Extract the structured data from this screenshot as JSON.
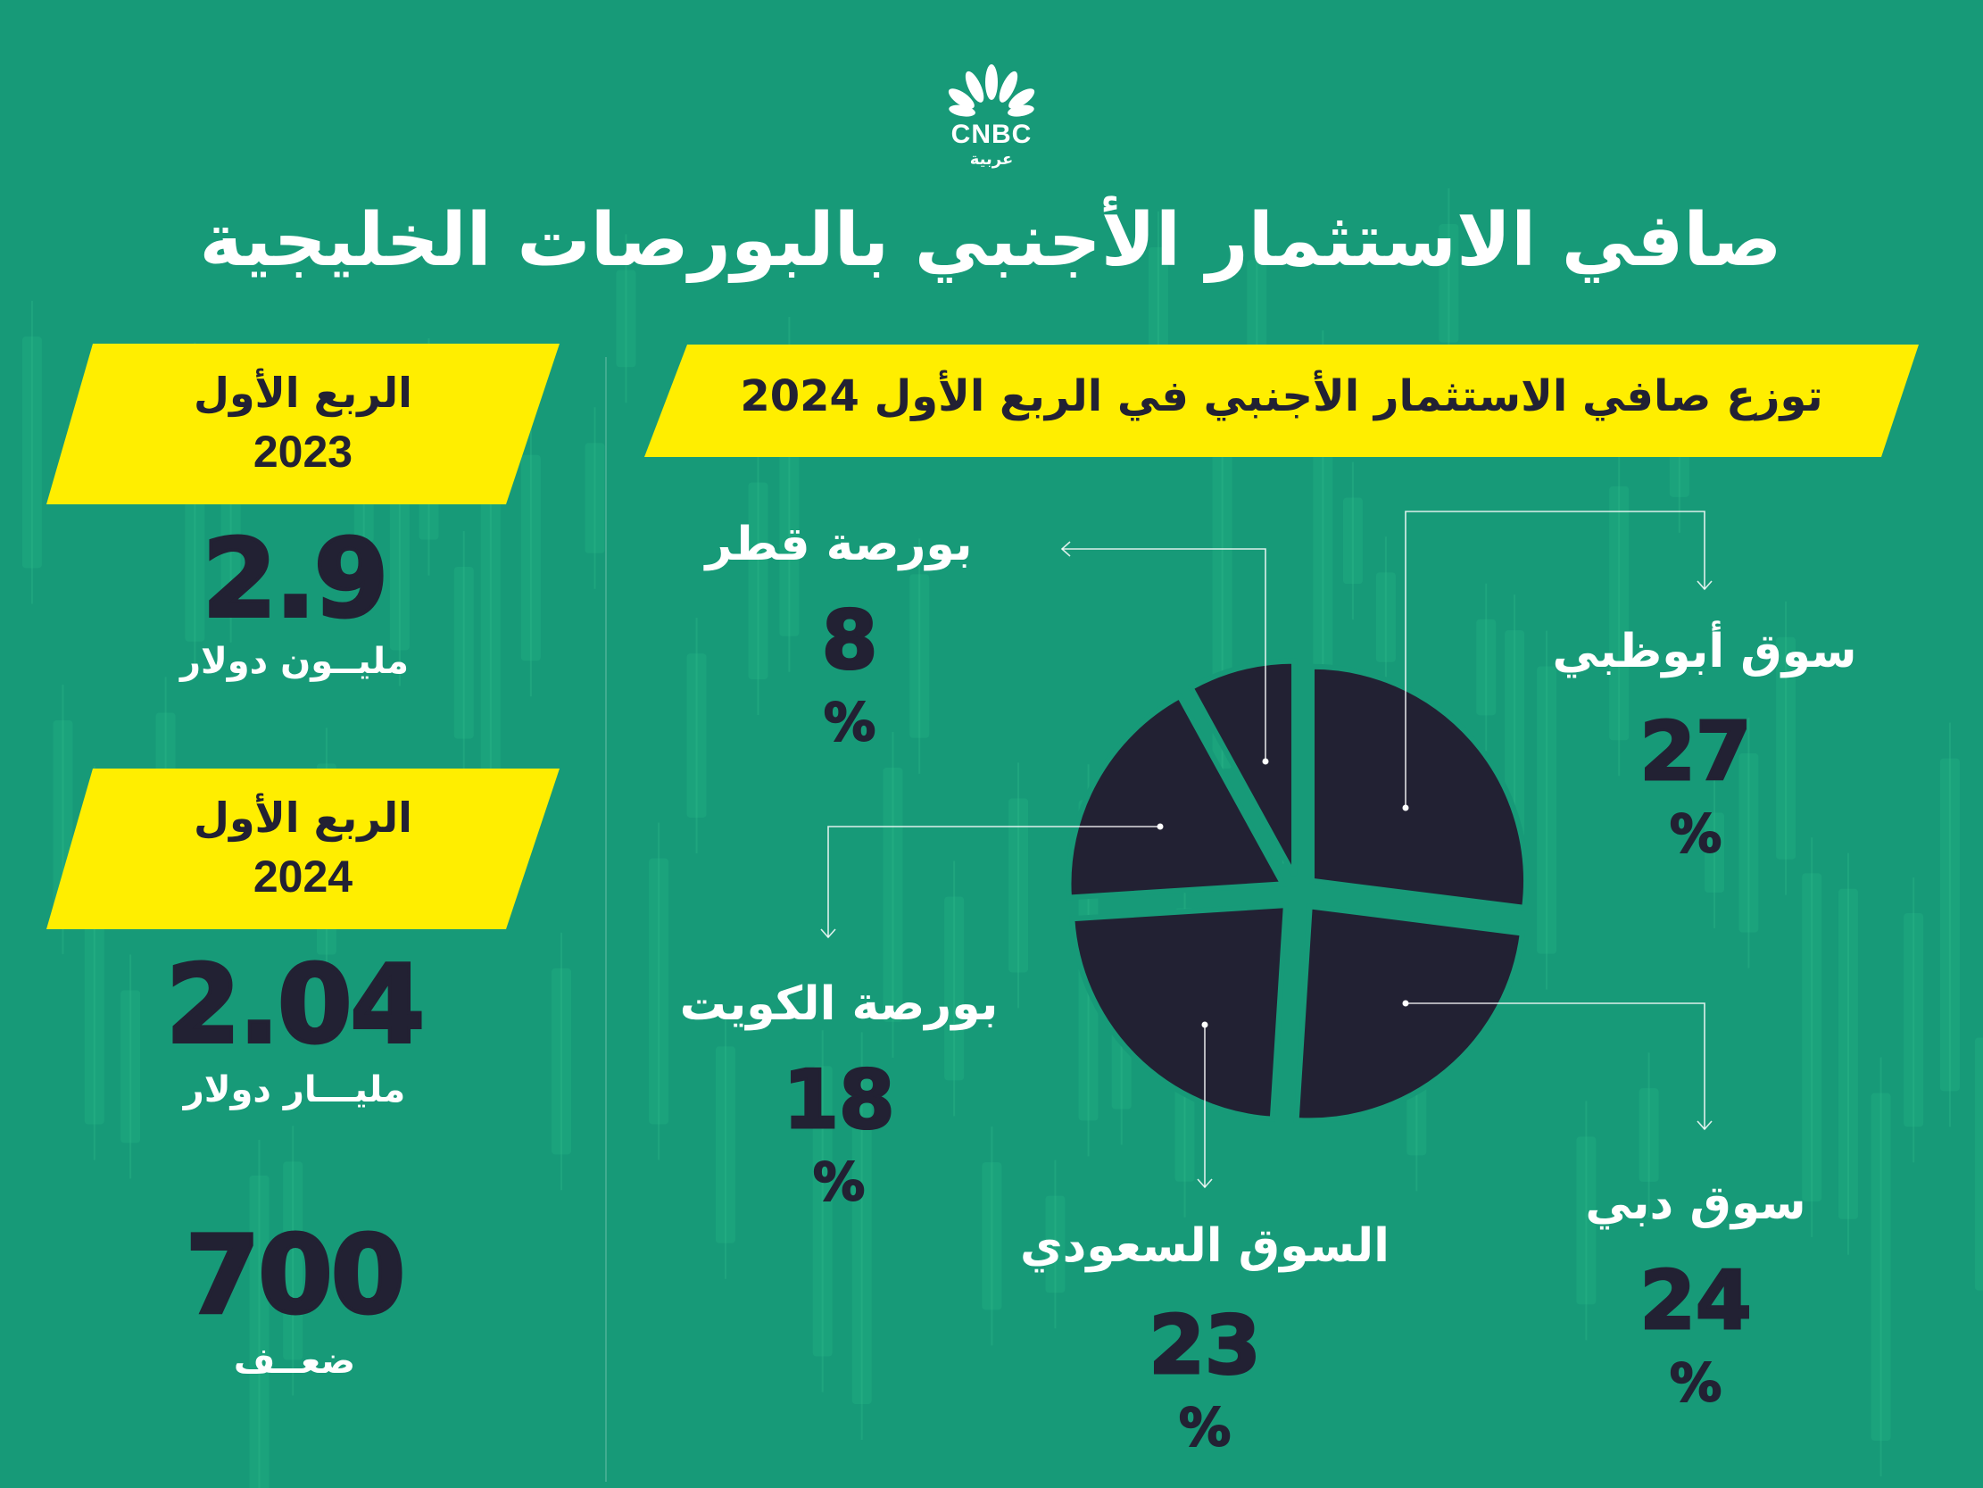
{
  "brand": {
    "logo_text": "CNBC",
    "logo_subtext": "عربية"
  },
  "title": "صافي الاستثمار الأجنبي بالبورصات الخليجية",
  "colors": {
    "background": "#179a78",
    "banner": "#ffee00",
    "dark": "#222133",
    "text": "#ffffff"
  },
  "summary": {
    "q1_2023": {
      "period_label": "الربع الأول",
      "year": "2023",
      "value": "2.9",
      "unit": "مليــون دولار"
    },
    "q1_2024": {
      "period_label": "الربع الأول",
      "year": "2024",
      "value": "2.04",
      "unit": "مليـــار دولار"
    },
    "multiple": {
      "value": "700",
      "unit": "ضعــف"
    }
  },
  "chart_data": {
    "type": "pie",
    "title": "توزع صافي الاستثمار الأجنبي في الربع الأول 2024",
    "percent_sign": "%",
    "slices": [
      {
        "label": "سوق أبوظبي",
        "value": 27,
        "display": "27"
      },
      {
        "label": "سوق دبي",
        "value": 24,
        "display": "24"
      },
      {
        "label": "السوق السعودي",
        "value": 23,
        "display": "23"
      },
      {
        "label": "بورصة الكويت",
        "value": 18,
        "display": "18"
      },
      {
        "label": "بورصة قطر",
        "value": 8,
        "display": "8"
      }
    ]
  }
}
